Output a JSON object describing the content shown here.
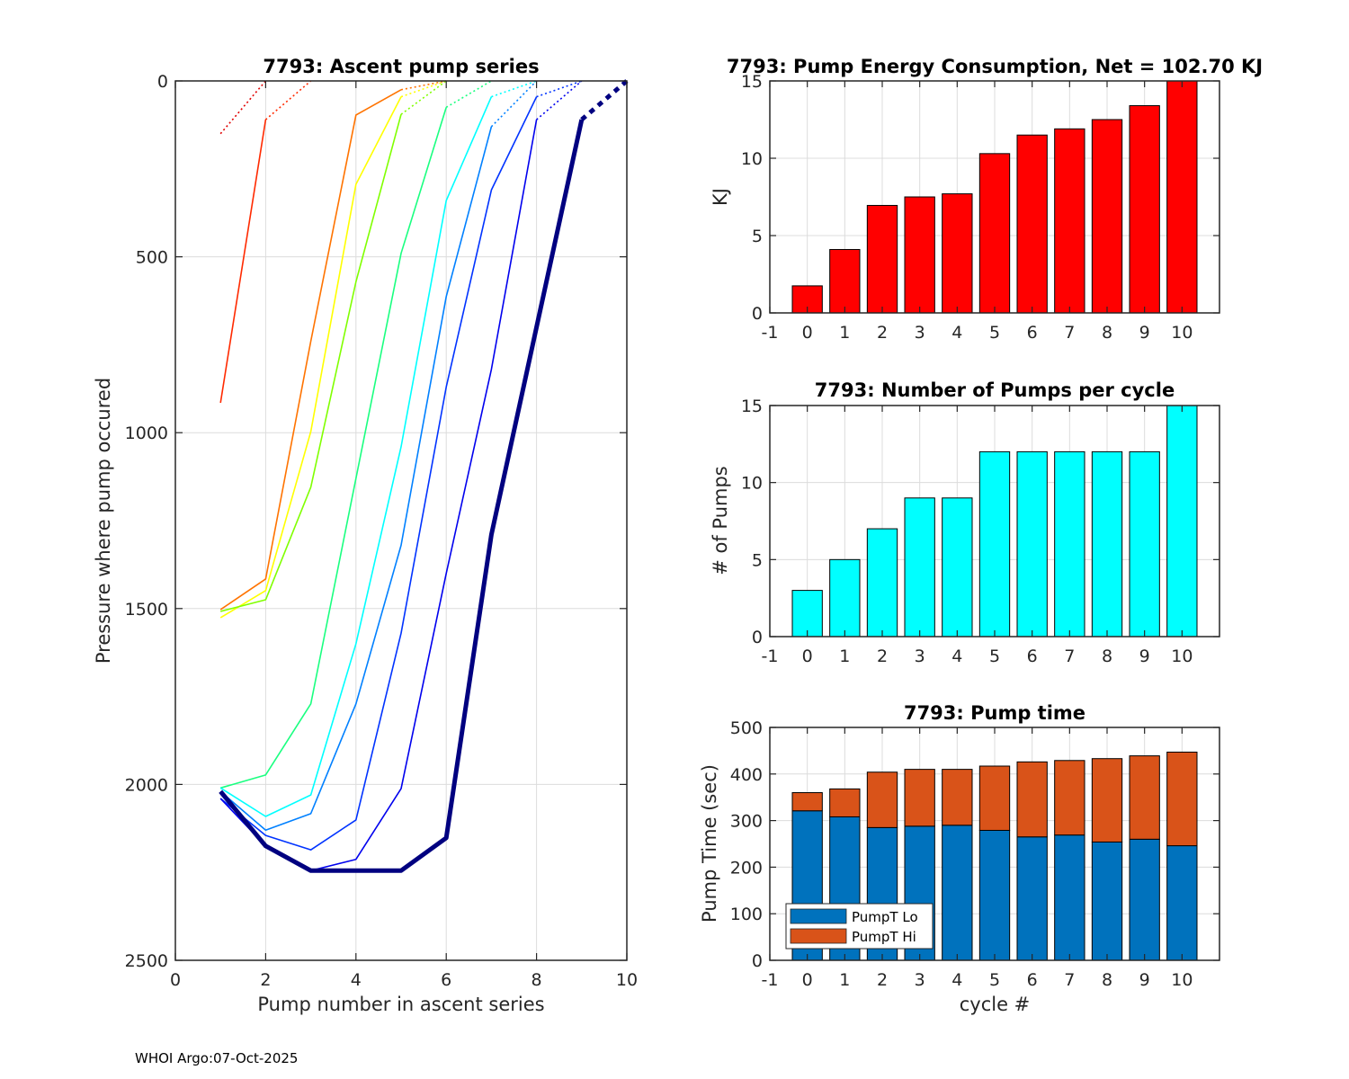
{
  "footer": "WHOI Argo:07-Oct-2025",
  "chart_data": [
    {
      "id": "ascent",
      "type": "line",
      "title": "7793: Ascent pump series",
      "xlabel": "Pump number in ascent series",
      "ylabel": "Pressure where pump occured",
      "xlim": [
        0,
        10
      ],
      "ylim": [
        0,
        2500
      ],
      "y_reversed": true,
      "xticks": [
        0,
        2,
        4,
        6,
        8,
        10
      ],
      "yticks": [
        0,
        500,
        1000,
        1500,
        2000,
        2500
      ],
      "grid": true,
      "series": [
        {
          "name": "cycle 0",
          "color": "#e00000",
          "pressures": [
            150
          ],
          "surface_x": 2
        },
        {
          "name": "cycle 1",
          "color": "#ff2a00",
          "pressures": [
            915,
            110
          ],
          "surface_x": 3
        },
        {
          "name": "cycle 2",
          "color": "#ff7300",
          "pressures": [
            1503,
            1416,
            740,
            97,
            25
          ],
          "surface_x": 6
        },
        {
          "name": "cycle 3",
          "color": "#ffff00",
          "pressures": [
            1526,
            1449,
            997,
            294,
            45
          ],
          "surface_x": 6
        },
        {
          "name": "cycle 4",
          "color": "#80ff00",
          "pressures": [
            1508,
            1475,
            1155,
            571,
            95
          ],
          "surface_x": 6
        },
        {
          "name": "cycle 5",
          "color": "#1aff80",
          "pressures": [
            2010,
            1973,
            1771,
            1130,
            490,
            75
          ],
          "surface_x": 7
        },
        {
          "name": "cycle 6",
          "color": "#00ffff",
          "pressures": [
            2010,
            2091,
            2030,
            1600,
            1040,
            340,
            45
          ],
          "surface_x": 8
        },
        {
          "name": "cycle 7",
          "color": "#0080ff",
          "pressures": [
            2020,
            2130,
            2083,
            1771,
            1320,
            613,
            130
          ],
          "surface_x": 8
        },
        {
          "name": "cycle 8",
          "color": "#0033ff",
          "pressures": [
            2040,
            2145,
            2186,
            2101,
            1570,
            870,
            310,
            45
          ],
          "surface_x": 9
        },
        {
          "name": "cycle 9",
          "color": "#0000ee",
          "pressures": [
            2040,
            2175,
            2245,
            2213,
            2012,
            1400,
            820,
            110
          ],
          "surface_x": 9
        },
        {
          "name": "cycle 10",
          "color": "#000080",
          "pressures": [
            2020,
            2175,
            2245,
            2245,
            2245,
            2152,
            1290,
            700,
            110
          ],
          "surface_x": 10,
          "thick": true
        }
      ]
    },
    {
      "id": "energy",
      "type": "bar",
      "title": "7793: Pump Energy Consumption,  Net = 102.70 KJ",
      "xlabel": "",
      "ylabel": "KJ",
      "categories": [
        0,
        1,
        2,
        3,
        4,
        5,
        6,
        7,
        8,
        9,
        10
      ],
      "values": [
        1.75,
        4.1,
        6.95,
        7.5,
        7.7,
        10.3,
        11.5,
        11.9,
        12.5,
        13.4,
        15.1
      ],
      "color": "#ff0000",
      "xlim": [
        -1,
        11
      ],
      "ylim": [
        0,
        15
      ],
      "xticks": [
        -1,
        0,
        1,
        2,
        3,
        4,
        5,
        6,
        7,
        8,
        9,
        10
      ],
      "yticks": [
        0,
        5,
        10,
        15
      ],
      "grid": true
    },
    {
      "id": "pumps",
      "type": "bar",
      "title": "7793: Number of Pumps per cycle",
      "xlabel": "",
      "ylabel": "# of Pumps",
      "categories": [
        0,
        1,
        2,
        3,
        4,
        5,
        6,
        7,
        8,
        9,
        10
      ],
      "values": [
        3,
        5,
        7,
        9,
        9,
        12,
        12,
        12,
        12,
        12,
        15
      ],
      "color": "#00ffff",
      "xlim": [
        -1,
        11
      ],
      "ylim": [
        0,
        15
      ],
      "xticks": [
        -1,
        0,
        1,
        2,
        3,
        4,
        5,
        6,
        7,
        8,
        9,
        10
      ],
      "yticks": [
        0,
        5,
        10,
        15
      ],
      "grid": true
    },
    {
      "id": "pumptime",
      "type": "bar",
      "stacked": true,
      "title": "7793: Pump time",
      "xlabel": "cycle #",
      "ylabel": "Pump Time (sec)",
      "categories": [
        0,
        1,
        2,
        3,
        4,
        5,
        6,
        7,
        8,
        9,
        10
      ],
      "series": [
        {
          "name": "PumpT Lo",
          "color": "#0072bd",
          "values": [
            321,
            308,
            285,
            288,
            290,
            279,
            265,
            269,
            254,
            260,
            246
          ]
        },
        {
          "name": "PumpT Hi",
          "color": "#d95319",
          "values": [
            39,
            60,
            119,
            122,
            120,
            138,
            161,
            160,
            179,
            179,
            201
          ]
        }
      ],
      "xlim": [
        -1,
        11
      ],
      "ylim": [
        0,
        500
      ],
      "xticks": [
        -1,
        0,
        1,
        2,
        3,
        4,
        5,
        6,
        7,
        8,
        9,
        10
      ],
      "yticks": [
        0,
        100,
        200,
        300,
        400,
        500
      ],
      "legend_position": "bottom-left",
      "grid": true
    }
  ]
}
